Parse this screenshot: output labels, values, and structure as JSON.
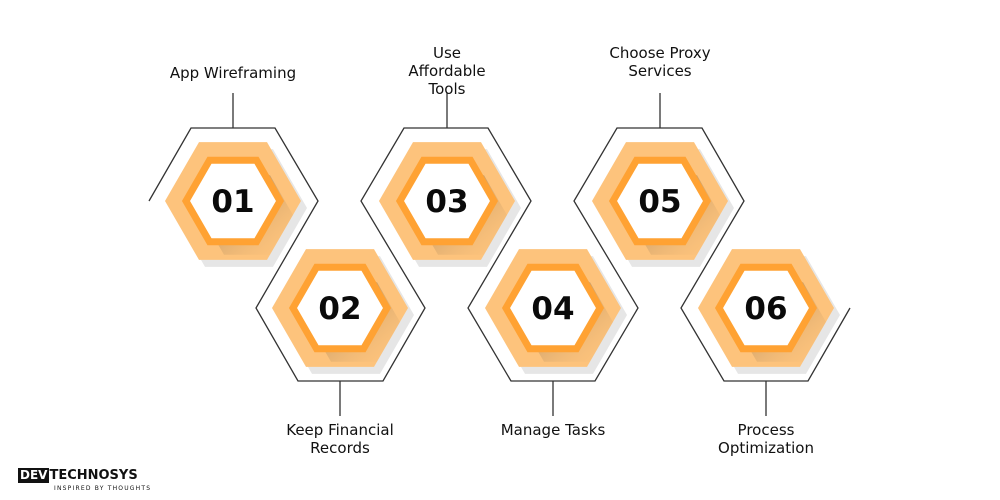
{
  "steps": [
    {
      "number": "01",
      "label": "App Wireframing"
    },
    {
      "number": "02",
      "label": "Keep Financial Records"
    },
    {
      "number": "03",
      "label": "Use Affordable Tools"
    },
    {
      "number": "04",
      "label": "Manage Tasks"
    },
    {
      "number": "05",
      "label": "Choose Proxy Services"
    },
    {
      "number": "06",
      "label": "Process Optimization"
    }
  ],
  "logo": {
    "dev": "DEV",
    "brand": "TECHNOSYS",
    "tagline": "INSPIRED BY THOUGHTS"
  },
  "colors": {
    "outer_fill": "#fdc37c",
    "inner_border": "#ffa233",
    "outline": "#333333"
  }
}
